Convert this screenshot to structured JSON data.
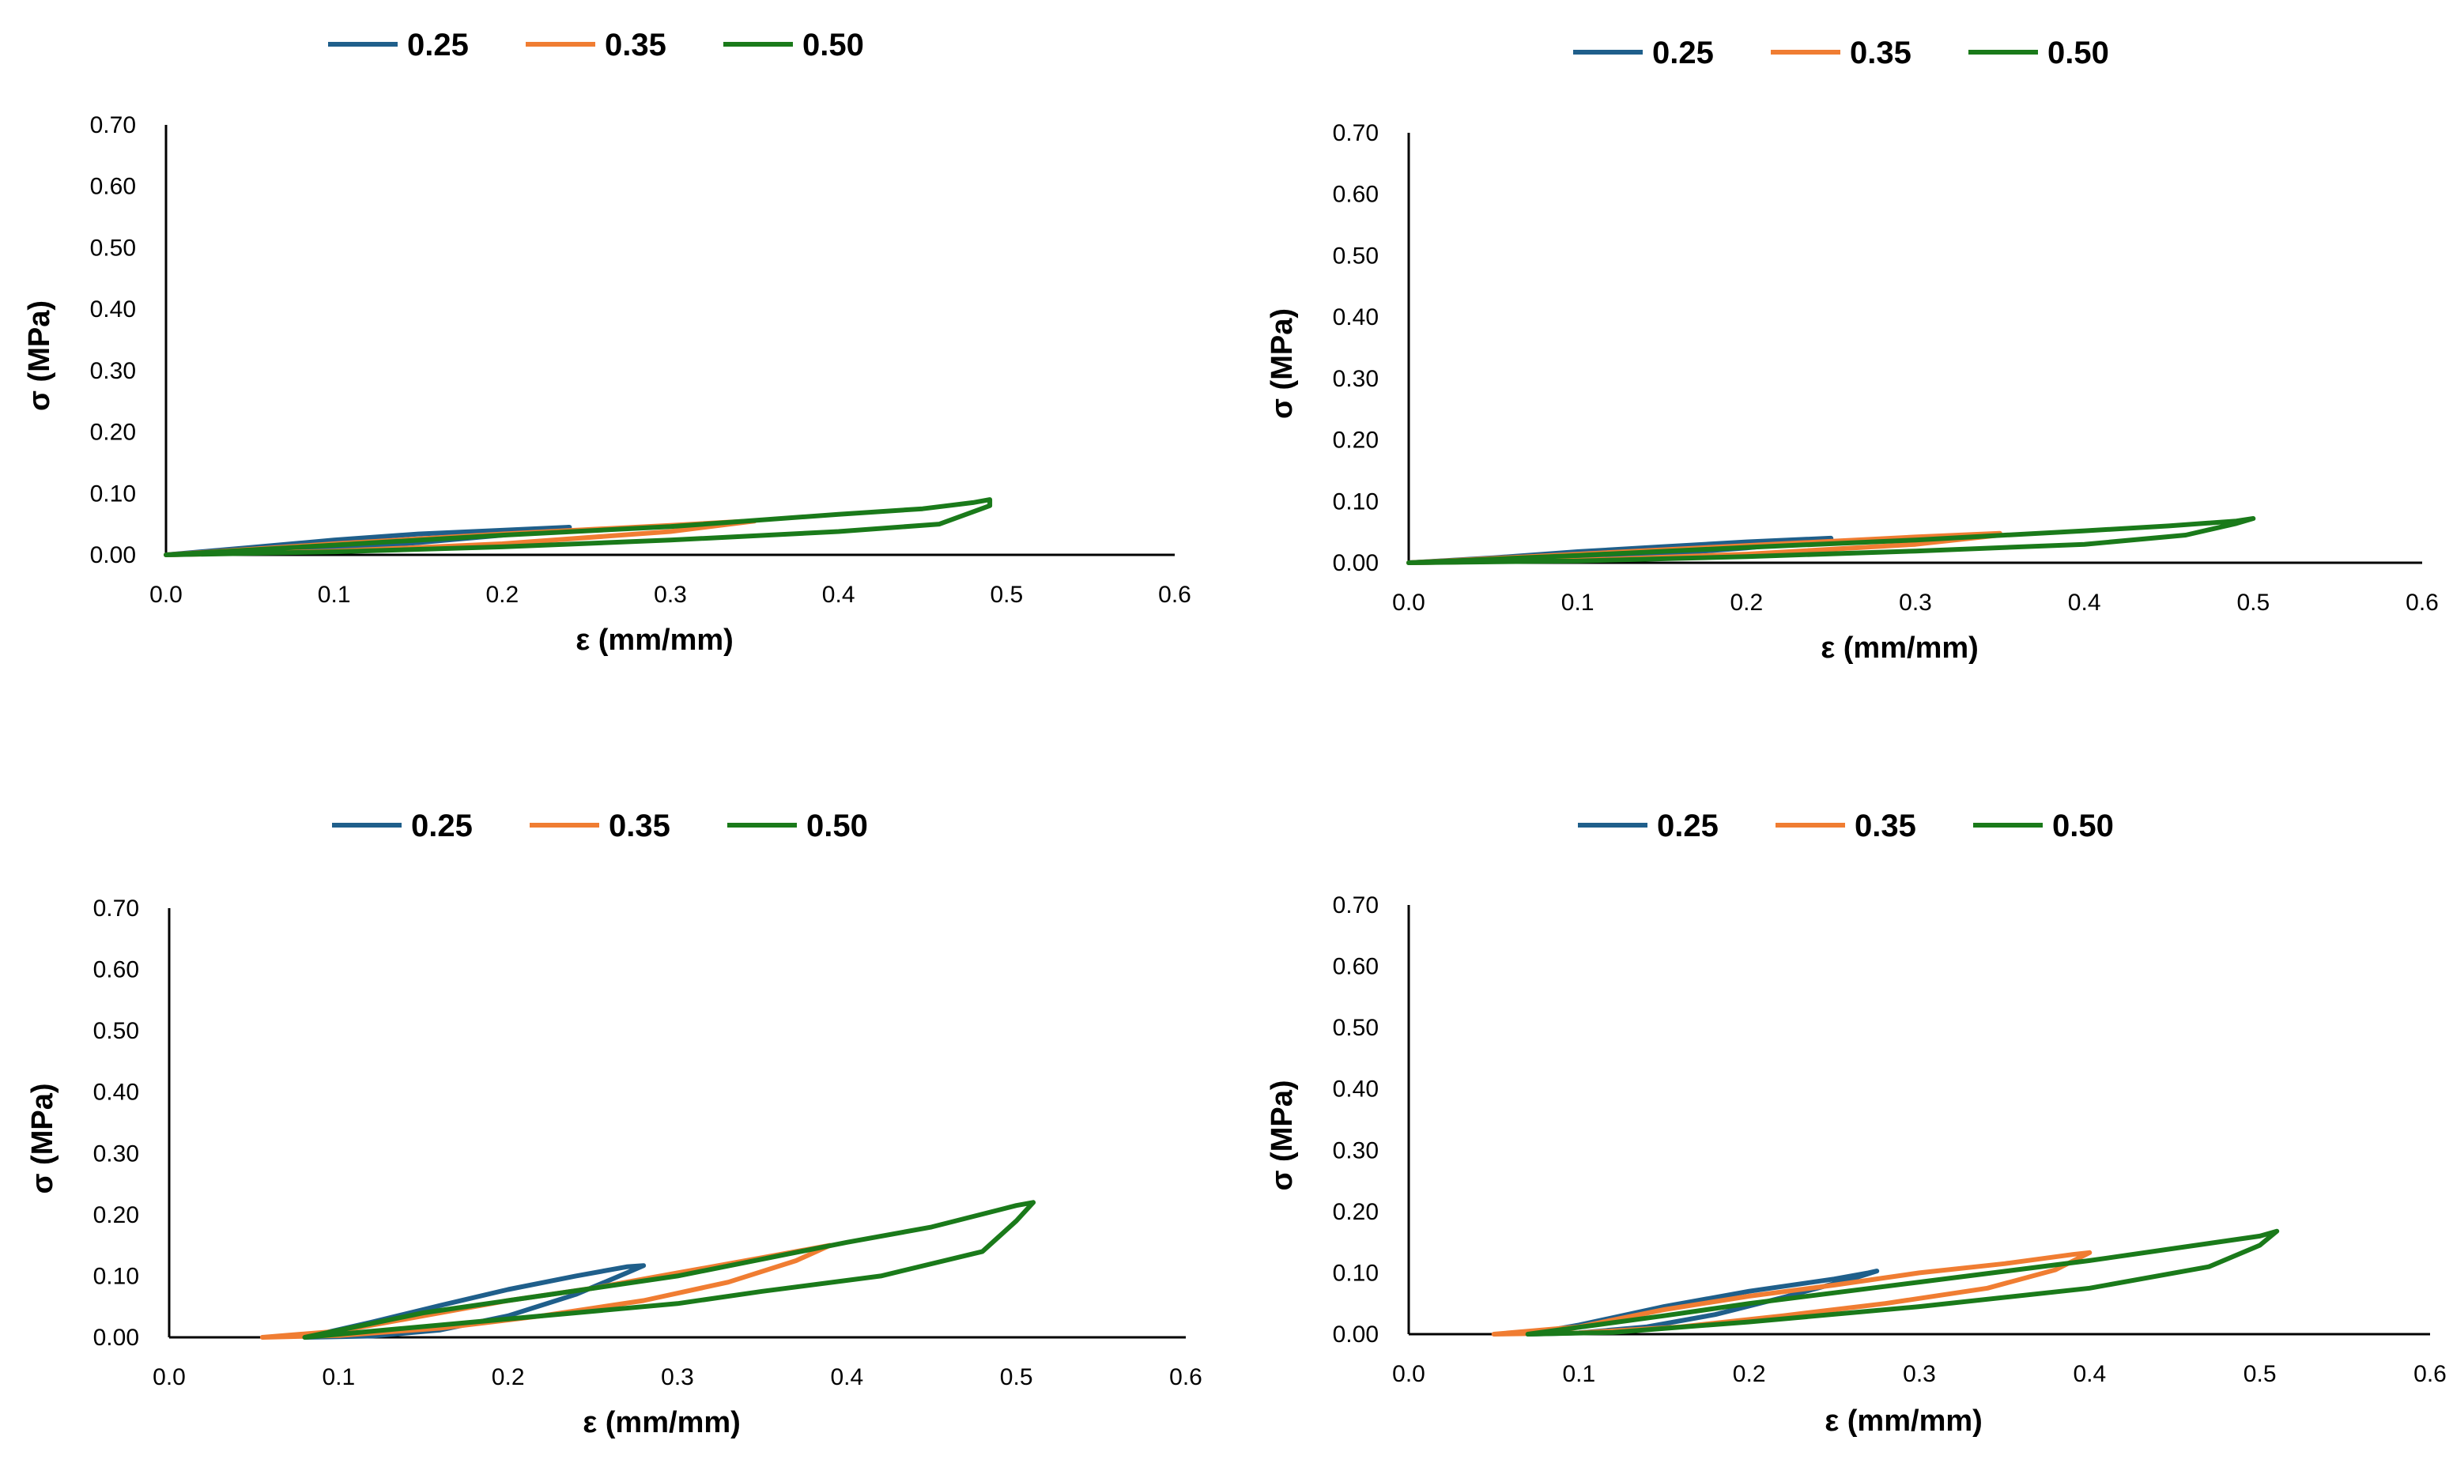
{
  "chart_data": [
    {
      "type": "line",
      "title": "",
      "xlabel": "ε (mm/mm)",
      "ylabel": "σ (MPa)",
      "xlim": [
        0,
        0.6
      ],
      "ylim": [
        0,
        0.7
      ],
      "x_ticks": [
        "0.0",
        "0.1",
        "0.2",
        "0.3",
        "0.4",
        "0.5",
        "0.6"
      ],
      "y_ticks": [
        "0.00",
        "0.10",
        "0.20",
        "0.30",
        "0.40",
        "0.50",
        "0.60",
        "0.70"
      ],
      "grid": false,
      "legend_position": "top",
      "series": [
        {
          "name": "0.25",
          "color": "#1f5f8b",
          "x": [
            0.0,
            0.05,
            0.1,
            0.15,
            0.2,
            0.24,
            0.24,
            0.2,
            0.15,
            0.1,
            0.05,
            0.0
          ],
          "y": [
            0.0,
            0.012,
            0.024,
            0.034,
            0.04,
            0.045,
            0.045,
            0.032,
            0.02,
            0.01,
            0.004,
            0.0
          ]
        },
        {
          "name": "0.35",
          "color": "#f07d32",
          "x": [
            0.0,
            0.1,
            0.2,
            0.3,
            0.34,
            0.35,
            0.3,
            0.2,
            0.1,
            0.0
          ],
          "y": [
            0.0,
            0.018,
            0.034,
            0.048,
            0.054,
            0.055,
            0.038,
            0.018,
            0.006,
            0.0
          ]
        },
        {
          "name": "0.50",
          "color": "#1a7a1a",
          "x": [
            0.0,
            0.1,
            0.2,
            0.3,
            0.4,
            0.45,
            0.48,
            0.49,
            0.49,
            0.46,
            0.4,
            0.3,
            0.2,
            0.1,
            0.0
          ],
          "y": [
            0.0,
            0.016,
            0.032,
            0.046,
            0.066,
            0.075,
            0.085,
            0.09,
            0.08,
            0.05,
            0.038,
            0.024,
            0.013,
            0.005,
            0.0
          ]
        }
      ]
    },
    {
      "type": "line",
      "title": "",
      "xlabel": "ε (mm/mm)",
      "ylabel": "σ (MPa)",
      "xlim": [
        0,
        0.6
      ],
      "ylim": [
        0,
        0.7
      ],
      "x_ticks": [
        "0.0",
        "0.1",
        "0.2",
        "0.3",
        "0.4",
        "0.5",
        "0.6"
      ],
      "y_ticks": [
        "0.00",
        "0.10",
        "0.20",
        "0.30",
        "0.40",
        "0.50",
        "0.60",
        "0.70"
      ],
      "grid": false,
      "legend_position": "top",
      "series": [
        {
          "name": "0.25",
          "color": "#1f5f8b",
          "x": [
            0.0,
            0.05,
            0.1,
            0.15,
            0.2,
            0.25,
            0.25,
            0.2,
            0.15,
            0.1,
            0.05,
            0.0
          ],
          "y": [
            0.0,
            0.008,
            0.018,
            0.026,
            0.034,
            0.04,
            0.038,
            0.024,
            0.014,
            0.007,
            0.002,
            0.0
          ]
        },
        {
          "name": "0.35",
          "color": "#f07d32",
          "x": [
            0.0,
            0.1,
            0.2,
            0.3,
            0.35,
            0.35,
            0.3,
            0.2,
            0.1,
            0.0
          ],
          "y": [
            0.0,
            0.014,
            0.028,
            0.042,
            0.048,
            0.045,
            0.03,
            0.014,
            0.004,
            0.0
          ]
        },
        {
          "name": "0.50",
          "color": "#1a7a1a",
          "x": [
            0.0,
            0.1,
            0.2,
            0.3,
            0.4,
            0.45,
            0.49,
            0.5,
            0.49,
            0.46,
            0.4,
            0.3,
            0.2,
            0.1,
            0.0
          ],
          "y": [
            0.0,
            0.012,
            0.025,
            0.037,
            0.052,
            0.06,
            0.068,
            0.072,
            0.064,
            0.045,
            0.03,
            0.019,
            0.01,
            0.003,
            0.0
          ]
        }
      ]
    },
    {
      "type": "line",
      "title": "",
      "xlabel": "ε (mm/mm)",
      "ylabel": "σ (MPa)",
      "xlim": [
        0,
        0.6
      ],
      "ylim": [
        0,
        0.7
      ],
      "x_ticks": [
        "0.0",
        "0.1",
        "0.2",
        "0.3",
        "0.4",
        "0.5",
        "0.6"
      ],
      "y_ticks": [
        "0.00",
        "0.10",
        "0.20",
        "0.30",
        "0.40",
        "0.50",
        "0.60",
        "0.70"
      ],
      "grid": false,
      "legend_position": "top",
      "series": [
        {
          "name": "0.25",
          "color": "#1f5f8b",
          "x": [
            0.08,
            0.12,
            0.16,
            0.2,
            0.24,
            0.27,
            0.28,
            0.27,
            0.24,
            0.2,
            0.16,
            0.12,
            0.08
          ],
          "y": [
            0.0,
            0.025,
            0.052,
            0.078,
            0.1,
            0.115,
            0.117,
            0.105,
            0.07,
            0.035,
            0.012,
            0.002,
            0.0
          ]
        },
        {
          "name": "0.35",
          "color": "#f07d32",
          "x": [
            0.055,
            0.1,
            0.15,
            0.2,
            0.25,
            0.3,
            0.35,
            0.39,
            0.37,
            0.33,
            0.28,
            0.22,
            0.16,
            0.1,
            0.055
          ],
          "y": [
            0.0,
            0.01,
            0.035,
            0.06,
            0.08,
            0.105,
            0.13,
            0.15,
            0.125,
            0.09,
            0.06,
            0.035,
            0.015,
            0.003,
            0.0
          ]
        },
        {
          "name": "0.50",
          "color": "#1a7a1a",
          "x": [
            0.08,
            0.15,
            0.2,
            0.3,
            0.4,
            0.45,
            0.5,
            0.51,
            0.5,
            0.48,
            0.42,
            0.35,
            0.3,
            0.2,
            0.1,
            0.08
          ],
          "y": [
            0.0,
            0.04,
            0.06,
            0.1,
            0.155,
            0.18,
            0.215,
            0.22,
            0.19,
            0.14,
            0.1,
            0.075,
            0.055,
            0.03,
            0.005,
            0.0
          ]
        }
      ]
    },
    {
      "type": "line",
      "title": "",
      "xlabel": "ε (mm/mm)",
      "ylabel": "σ (MPa)",
      "xlim": [
        0,
        0.6
      ],
      "ylim": [
        0,
        0.7
      ],
      "x_ticks": [
        "0.0",
        "0.1",
        "0.2",
        "0.3",
        "0.4",
        "0.5",
        "0.6"
      ],
      "y_ticks": [
        "0.00",
        "0.10",
        "0.20",
        "0.30",
        "0.40",
        "0.50",
        "0.60",
        "0.70"
      ],
      "grid": false,
      "legend_position": "top",
      "series": [
        {
          "name": "0.25",
          "color": "#1f5f8b",
          "x": [
            0.07,
            0.1,
            0.15,
            0.2,
            0.25,
            0.27,
            0.275,
            0.26,
            0.22,
            0.18,
            0.14,
            0.1,
            0.07
          ],
          "y": [
            0.0,
            0.015,
            0.045,
            0.07,
            0.09,
            0.1,
            0.103,
            0.09,
            0.06,
            0.032,
            0.012,
            0.002,
            0.0
          ]
        },
        {
          "name": "0.35",
          "color": "#f07d32",
          "x": [
            0.05,
            0.1,
            0.15,
            0.2,
            0.25,
            0.3,
            0.35,
            0.39,
            0.4,
            0.38,
            0.34,
            0.28,
            0.22,
            0.16,
            0.1,
            0.05
          ],
          "y": [
            0.0,
            0.012,
            0.04,
            0.062,
            0.08,
            0.1,
            0.115,
            0.13,
            0.133,
            0.105,
            0.075,
            0.05,
            0.03,
            0.012,
            0.002,
            0.0
          ]
        },
        {
          "name": "0.50",
          "color": "#1a7a1a",
          "x": [
            0.07,
            0.15,
            0.2,
            0.3,
            0.4,
            0.45,
            0.5,
            0.51,
            0.5,
            0.47,
            0.4,
            0.3,
            0.2,
            0.12,
            0.07
          ],
          "y": [
            0.0,
            0.03,
            0.05,
            0.085,
            0.12,
            0.14,
            0.16,
            0.168,
            0.145,
            0.11,
            0.075,
            0.045,
            0.02,
            0.003,
            0.0
          ]
        }
      ]
    }
  ]
}
